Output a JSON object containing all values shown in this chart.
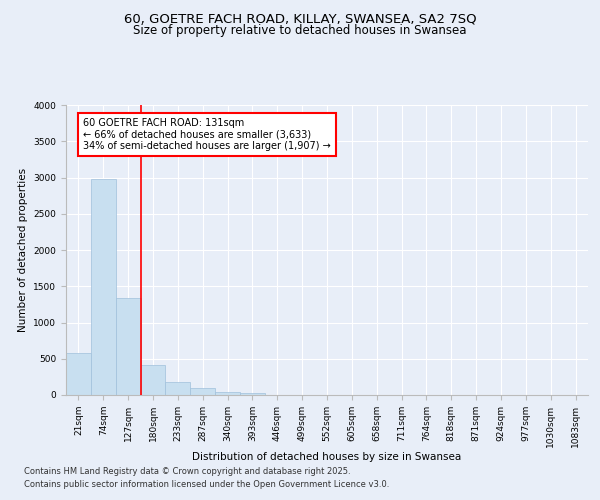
{
  "title": "60, GOETRE FACH ROAD, KILLAY, SWANSEA, SA2 7SQ",
  "subtitle": "Size of property relative to detached houses in Swansea",
  "xlabel": "Distribution of detached houses by size in Swansea",
  "ylabel": "Number of detached properties",
  "bar_labels": [
    "21sqm",
    "74sqm",
    "127sqm",
    "180sqm",
    "233sqm",
    "287sqm",
    "340sqm",
    "393sqm",
    "446sqm",
    "499sqm",
    "552sqm",
    "605sqm",
    "658sqm",
    "711sqm",
    "764sqm",
    "818sqm",
    "871sqm",
    "924sqm",
    "977sqm",
    "1030sqm",
    "1083sqm"
  ],
  "bar_values": [
    580,
    2980,
    1340,
    420,
    175,
    90,
    45,
    30,
    5,
    0,
    0,
    0,
    0,
    0,
    0,
    0,
    0,
    0,
    0,
    0,
    0
  ],
  "bar_color": "#c8dff0",
  "bar_edge_color": "#a0c0dc",
  "property_line_color": "#ff0000",
  "property_line_x": 2.5,
  "annotation_text": "60 GOETRE FACH ROAD: 131sqm\n← 66% of detached houses are smaller (3,633)\n34% of semi-detached houses are larger (1,907) →",
  "annotation_box_color": "#ff0000",
  "ylim": [
    0,
    4000
  ],
  "yticks": [
    0,
    500,
    1000,
    1500,
    2000,
    2500,
    3000,
    3500,
    4000
  ],
  "bg_color": "#e8eef8",
  "plot_bg_color": "#e8eef8",
  "footer_line1": "Contains HM Land Registry data © Crown copyright and database right 2025.",
  "footer_line2": "Contains public sector information licensed under the Open Government Licence v3.0.",
  "title_fontsize": 9.5,
  "subtitle_fontsize": 8.5,
  "axis_label_fontsize": 7.5,
  "tick_fontsize": 6.5,
  "annotation_fontsize": 7,
  "footer_fontsize": 6
}
